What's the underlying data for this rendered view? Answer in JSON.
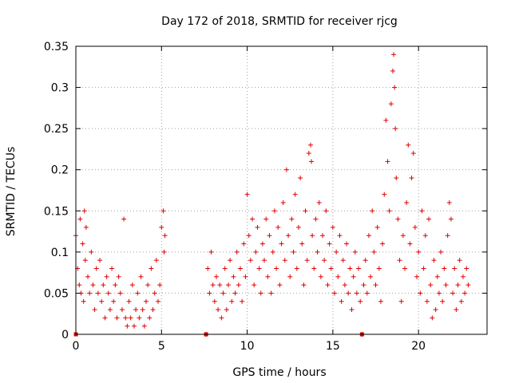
{
  "chart_data": {
    "type": "scatter",
    "title": "Day 172 of 2018, SRMTID for receiver rjcg",
    "xlabel": "GPS time / hours",
    "ylabel": "SRMTID / TECUs",
    "xlim": [
      0,
      24
    ],
    "ylim": [
      0,
      0.35
    ],
    "xticks": [
      0,
      5,
      10,
      15,
      20
    ],
    "xtick_labels": [
      "0",
      "5",
      "10",
      "15",
      "20"
    ],
    "yticks": [
      0,
      0.05,
      0.1,
      0.15,
      0.2,
      0.25,
      0.3,
      0.35
    ],
    "ytick_labels": [
      "0",
      "0.05",
      "0.1",
      "0.15",
      "0.2",
      "0.25",
      "0.3",
      "0.35"
    ],
    "grid": true,
    "marker_color": "#e00000",
    "series": [
      {
        "name": "SRMTID",
        "marker": "plus",
        "points": [
          [
            0.0,
            0.12
          ],
          [
            0.1,
            0.08
          ],
          [
            0.2,
            0.06
          ],
          [
            0.25,
            0.14
          ],
          [
            0.3,
            0.05
          ],
          [
            0.4,
            0.11
          ],
          [
            0.45,
            0.04
          ],
          [
            0.5,
            0.15
          ],
          [
            0.55,
            0.09
          ],
          [
            0.6,
            0.13
          ],
          [
            0.7,
            0.07
          ],
          [
            0.8,
            0.05
          ],
          [
            0.9,
            0.1
          ],
          [
            1.0,
            0.06
          ],
          [
            1.1,
            0.03
          ],
          [
            1.2,
            0.08
          ],
          [
            1.3,
            0.05
          ],
          [
            1.4,
            0.09
          ],
          [
            1.5,
            0.04
          ],
          [
            1.6,
            0.06
          ],
          [
            1.7,
            0.02
          ],
          [
            1.8,
            0.07
          ],
          [
            1.9,
            0.05
          ],
          [
            2.0,
            0.03
          ],
          [
            2.1,
            0.08
          ],
          [
            2.2,
            0.04
          ],
          [
            2.3,
            0.06
          ],
          [
            2.4,
            0.02
          ],
          [
            2.5,
            0.07
          ],
          [
            2.6,
            0.05
          ],
          [
            2.7,
            0.03
          ],
          [
            2.8,
            0.14
          ],
          [
            2.9,
            0.02
          ],
          [
            3.0,
            0.01
          ],
          [
            3.1,
            0.04
          ],
          [
            3.2,
            0.02
          ],
          [
            3.3,
            0.06
          ],
          [
            3.4,
            0.01
          ],
          [
            3.5,
            0.03
          ],
          [
            3.6,
            0.05
          ],
          [
            3.7,
            0.02
          ],
          [
            3.8,
            0.07
          ],
          [
            3.9,
            0.03
          ],
          [
            4.0,
            0.01
          ],
          [
            4.1,
            0.04
          ],
          [
            4.2,
            0.06
          ],
          [
            4.3,
            0.02
          ],
          [
            4.4,
            0.08
          ],
          [
            4.5,
            0.03
          ],
          [
            4.6,
            0.05
          ],
          [
            4.7,
            0.09
          ],
          [
            4.8,
            0.04
          ],
          [
            4.9,
            0.06
          ],
          [
            5.0,
            0.13
          ],
          [
            5.1,
            0.15
          ],
          [
            5.15,
            0.1
          ],
          [
            5.2,
            0.12
          ],
          [
            7.6,
            0.0
          ],
          [
            7.7,
            0.08
          ],
          [
            7.8,
            0.05
          ],
          [
            7.9,
            0.1
          ],
          [
            8.0,
            0.06
          ],
          [
            8.1,
            0.04
          ],
          [
            8.2,
            0.07
          ],
          [
            8.3,
            0.03
          ],
          [
            8.4,
            0.06
          ],
          [
            8.5,
            0.02
          ],
          [
            8.6,
            0.05
          ],
          [
            8.7,
            0.08
          ],
          [
            8.8,
            0.03
          ],
          [
            8.9,
            0.06
          ],
          [
            9.0,
            0.09
          ],
          [
            9.1,
            0.04
          ],
          [
            9.2,
            0.07
          ],
          [
            9.3,
            0.05
          ],
          [
            9.4,
            0.1
          ],
          [
            9.5,
            0.06
          ],
          [
            9.6,
            0.08
          ],
          [
            9.7,
            0.04
          ],
          [
            9.8,
            0.11
          ],
          [
            9.9,
            0.07
          ],
          [
            10.0,
            0.17
          ],
          [
            10.1,
            0.12
          ],
          [
            10.2,
            0.09
          ],
          [
            10.3,
            0.14
          ],
          [
            10.4,
            0.06
          ],
          [
            10.5,
            0.1
          ],
          [
            10.6,
            0.13
          ],
          [
            10.7,
            0.08
          ],
          [
            10.8,
            0.05
          ],
          [
            10.9,
            0.11
          ],
          [
            11.0,
            0.09
          ],
          [
            11.1,
            0.14
          ],
          [
            11.2,
            0.07
          ],
          [
            11.3,
            0.12
          ],
          [
            11.4,
            0.05
          ],
          [
            11.5,
            0.1
          ],
          [
            11.6,
            0.15
          ],
          [
            11.7,
            0.08
          ],
          [
            11.8,
            0.13
          ],
          [
            11.9,
            0.06
          ],
          [
            12.0,
            0.11
          ],
          [
            12.1,
            0.16
          ],
          [
            12.2,
            0.09
          ],
          [
            12.3,
            0.2
          ],
          [
            12.4,
            0.12
          ],
          [
            12.5,
            0.07
          ],
          [
            12.6,
            0.14
          ],
          [
            12.7,
            0.1
          ],
          [
            12.8,
            0.17
          ],
          [
            12.9,
            0.08
          ],
          [
            13.0,
            0.13
          ],
          [
            13.1,
            0.19
          ],
          [
            13.2,
            0.11
          ],
          [
            13.3,
            0.06
          ],
          [
            13.4,
            0.15
          ],
          [
            13.5,
            0.09
          ],
          [
            13.6,
            0.22
          ],
          [
            13.7,
            0.23
          ],
          [
            13.75,
            0.21
          ],
          [
            13.8,
            0.12
          ],
          [
            13.9,
            0.08
          ],
          [
            14.0,
            0.14
          ],
          [
            14.1,
            0.1
          ],
          [
            14.2,
            0.16
          ],
          [
            14.3,
            0.07
          ],
          [
            14.4,
            0.12
          ],
          [
            14.5,
            0.09
          ],
          [
            14.6,
            0.15
          ],
          [
            14.7,
            0.06
          ],
          [
            14.8,
            0.11
          ],
          [
            14.9,
            0.08
          ],
          [
            15.0,
            0.13
          ],
          [
            15.1,
            0.05
          ],
          [
            15.2,
            0.1
          ],
          [
            15.3,
            0.07
          ],
          [
            15.4,
            0.12
          ],
          [
            15.5,
            0.04
          ],
          [
            15.6,
            0.09
          ],
          [
            15.7,
            0.06
          ],
          [
            15.8,
            0.11
          ],
          [
            15.9,
            0.05
          ],
          [
            16.0,
            0.08
          ],
          [
            16.1,
            0.03
          ],
          [
            16.2,
            0.07
          ],
          [
            16.3,
            0.1
          ],
          [
            16.4,
            0.05
          ],
          [
            16.5,
            0.08
          ],
          [
            16.6,
            0.04
          ],
          [
            16.7,
            0.0
          ],
          [
            16.8,
            0.06
          ],
          [
            16.9,
            0.09
          ],
          [
            17.0,
            0.05
          ],
          [
            17.1,
            0.12
          ],
          [
            17.2,
            0.07
          ],
          [
            17.3,
            0.15
          ],
          [
            17.4,
            0.1
          ],
          [
            17.5,
            0.06
          ],
          [
            17.6,
            0.13
          ],
          [
            17.7,
            0.08
          ],
          [
            17.8,
            0.04
          ],
          [
            17.9,
            0.11
          ],
          [
            18.0,
            0.17
          ],
          [
            18.1,
            0.26
          ],
          [
            18.2,
            0.21
          ],
          [
            18.3,
            0.15
          ],
          [
            18.4,
            0.28
          ],
          [
            18.5,
            0.32
          ],
          [
            18.55,
            0.34
          ],
          [
            18.6,
            0.3
          ],
          [
            18.65,
            0.25
          ],
          [
            18.7,
            0.19
          ],
          [
            18.8,
            0.14
          ],
          [
            18.9,
            0.09
          ],
          [
            19.0,
            0.04
          ],
          [
            19.1,
            0.12
          ],
          [
            19.2,
            0.08
          ],
          [
            19.3,
            0.16
          ],
          [
            19.4,
            0.23
          ],
          [
            19.5,
            0.11
          ],
          [
            19.6,
            0.19
          ],
          [
            19.7,
            0.22
          ],
          [
            19.8,
            0.13
          ],
          [
            19.9,
            0.07
          ],
          [
            20.0,
            0.1
          ],
          [
            20.1,
            0.05
          ],
          [
            20.2,
            0.15
          ],
          [
            20.3,
            0.08
          ],
          [
            20.4,
            0.12
          ],
          [
            20.5,
            0.04
          ],
          [
            20.6,
            0.14
          ],
          [
            20.7,
            0.06
          ],
          [
            20.8,
            0.02
          ],
          [
            20.9,
            0.09
          ],
          [
            21.0,
            0.03
          ],
          [
            21.1,
            0.07
          ],
          [
            21.2,
            0.05
          ],
          [
            21.3,
            0.1
          ],
          [
            21.4,
            0.04
          ],
          [
            21.5,
            0.08
          ],
          [
            21.6,
            0.06
          ],
          [
            21.7,
            0.12
          ],
          [
            21.8,
            0.16
          ],
          [
            21.9,
            0.14
          ],
          [
            22.0,
            0.05
          ],
          [
            22.1,
            0.08
          ],
          [
            22.2,
            0.03
          ],
          [
            22.3,
            0.06
          ],
          [
            22.4,
            0.09
          ],
          [
            22.5,
            0.04
          ],
          [
            22.6,
            0.07
          ],
          [
            22.7,
            0.05
          ],
          [
            22.8,
            0.08
          ],
          [
            22.9,
            0.06
          ]
        ]
      }
    ],
    "gap_markers": [
      [
        0.0,
        0.0
      ],
      [
        7.6,
        0.0
      ],
      [
        16.7,
        0.0
      ]
    ]
  }
}
